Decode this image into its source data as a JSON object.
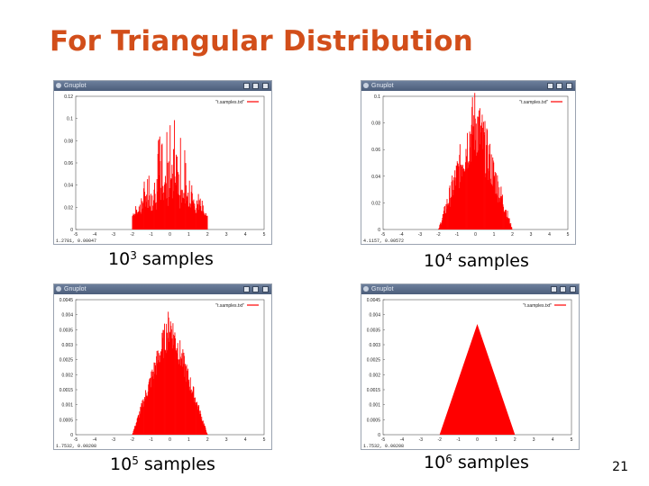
{
  "slide": {
    "title": "For Triangular Distribution",
    "page_number": "21"
  },
  "colors": {
    "title": "#d24e1a",
    "histogram": "#ff0000",
    "titlebar": "#4b5d7a"
  },
  "window_title": "Gnuplot",
  "panels": [
    {
      "caption_base": "10",
      "caption_exp": "3",
      "caption_text": " samples",
      "legend": "\"t.samples.txt\"",
      "y_ticks": [
        "0.12",
        "0.1",
        "0.08",
        "0.06",
        "0.04",
        "0.02",
        "0"
      ],
      "x_ticks": [
        "-5",
        "-4",
        "-3",
        "-2",
        "-1",
        "0",
        "1",
        "2",
        "3",
        "4",
        "5"
      ],
      "status": "1.2781, 0.00047"
    },
    {
      "caption_base": "10",
      "caption_exp": "4",
      "caption_text": " samples",
      "legend": "\"t.samples.txt\"",
      "y_ticks": [
        "0.1",
        "0.08",
        "0.06",
        "0.04",
        "0.02",
        "0"
      ],
      "x_ticks": [
        "-5",
        "-4",
        "-3",
        "-2",
        "-1",
        "0",
        "1",
        "2",
        "3",
        "4",
        "5"
      ],
      "status": "4.1157, 0.00572"
    },
    {
      "caption_base": "10",
      "caption_exp": "5",
      "caption_text": " samples",
      "legend": "\"t.samples.txt\"",
      "y_ticks": [
        "0.0045",
        "0.004",
        "0.0035",
        "0.003",
        "0.0025",
        "0.002",
        "0.0015",
        "0.001",
        "0.0005",
        "0"
      ],
      "x_ticks": [
        "-5",
        "-4",
        "-3",
        "-2",
        "-1",
        "0",
        "1",
        "2",
        "3",
        "4",
        "5"
      ],
      "status": "1.7532, 0.00208"
    },
    {
      "caption_base": "10",
      "caption_exp": "6",
      "caption_text": " samples",
      "legend": "\"t.samples.txt\"",
      "y_ticks": [
        "0.0045",
        "0.004",
        "0.0035",
        "0.003",
        "0.0025",
        "0.002",
        "0.0015",
        "0.001",
        "0.0005",
        "0"
      ],
      "x_ticks": [
        "-5",
        "-4",
        "-3",
        "-2",
        "-1",
        "0",
        "1",
        "2",
        "3",
        "4",
        "5"
      ],
      "status": "1.7532, 0.00208"
    }
  ]
}
